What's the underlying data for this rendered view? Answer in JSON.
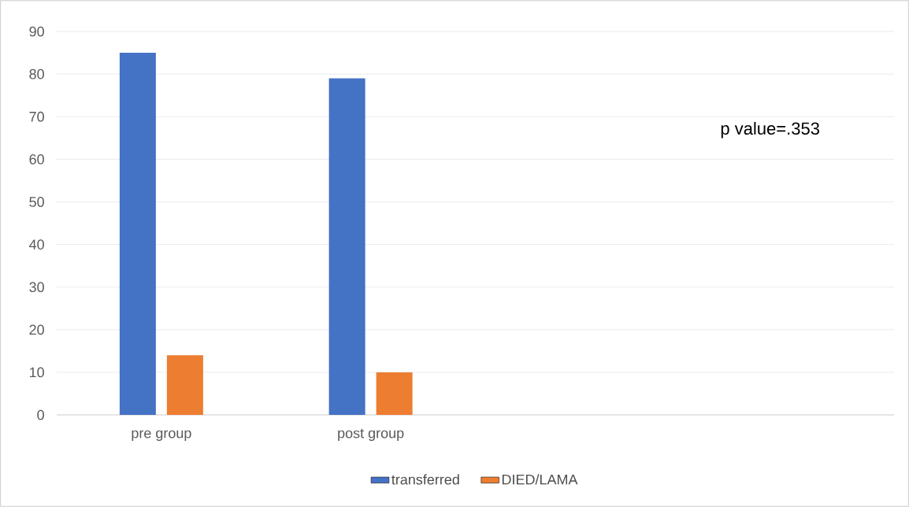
{
  "chart_data": {
    "type": "bar",
    "categories": [
      "pre group",
      "post group",
      null,
      null
    ],
    "series": [
      {
        "name": "transferred",
        "color": "#4472c4",
        "values": [
          85,
          79,
          null,
          null
        ]
      },
      {
        "name": "DIED/LAMA",
        "color": "#ed7d31",
        "values": [
          14,
          10,
          null,
          null
        ]
      }
    ],
    "ylim": [
      0,
      90
    ],
    "yticks": [
      0,
      10,
      20,
      30,
      40,
      50,
      60,
      70,
      80,
      90
    ],
    "grid": "y",
    "legend": "bottom",
    "annotations": [
      "p value=.353"
    ]
  }
}
